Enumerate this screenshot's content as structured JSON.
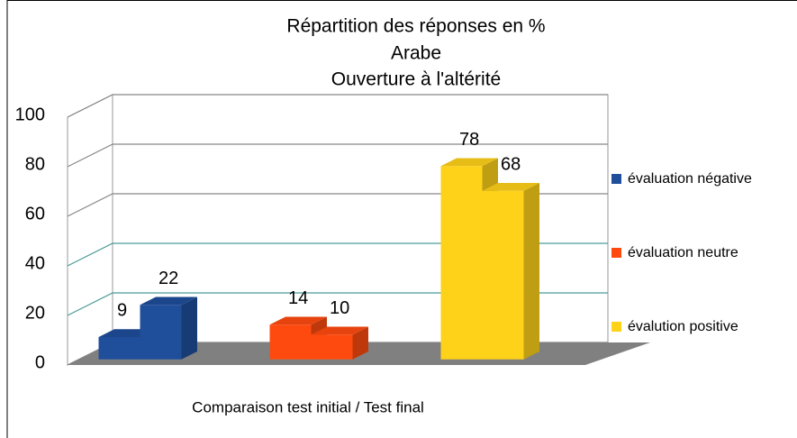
{
  "chart_data": {
    "type": "bar3d",
    "title": "Répartition des réponses en %",
    "subtitle": [
      "Arabe",
      "Ouverture à l'altérité"
    ],
    "x_label": "Comparaison test initial / Test final",
    "series": [
      {
        "name": "évaluation négative",
        "color": "#1f4e9a",
        "values": [
          9,
          22
        ]
      },
      {
        "name": "évaluation neutre",
        "color": "#ff4a0f",
        "values": [
          14,
          10
        ]
      },
      {
        "name": "évalution positive",
        "color": "#ffd21a",
        "values": [
          78,
          68
        ]
      }
    ],
    "ylim": [
      0,
      100
    ],
    "yticks": [
      0,
      20,
      40,
      60,
      80,
      100
    ],
    "grid": true,
    "legend": "right"
  }
}
